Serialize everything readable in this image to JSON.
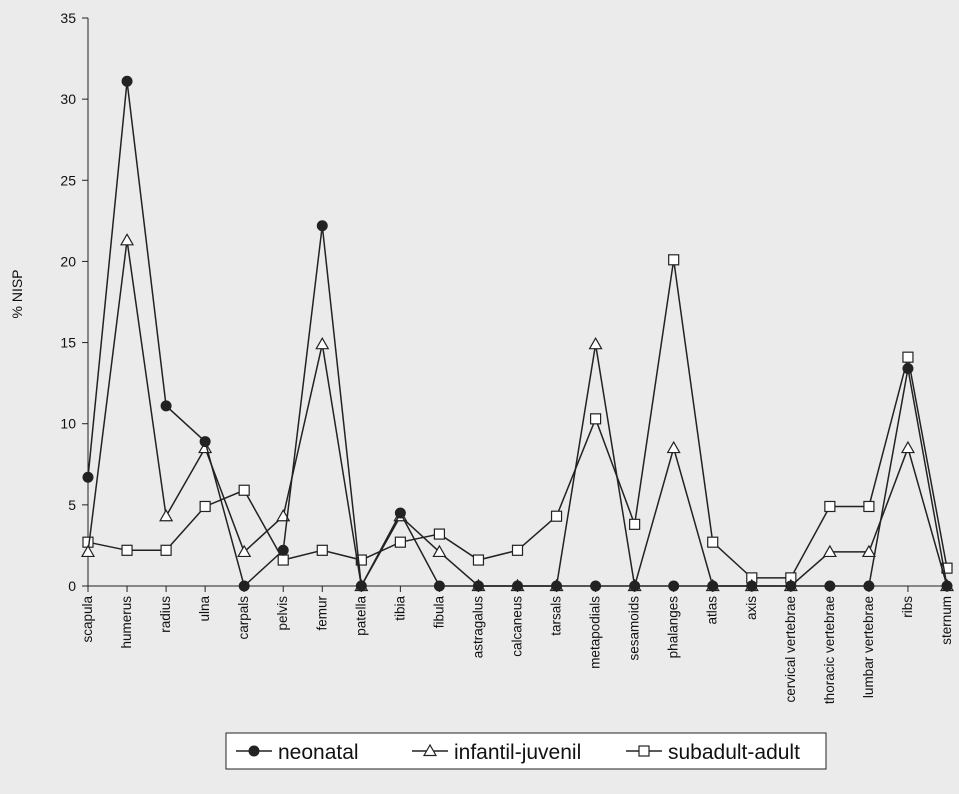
{
  "chart_data": {
    "type": "line",
    "ylabel": "% NISP",
    "xlabel": "",
    "ylim": [
      0,
      35
    ],
    "yticks": [
      0,
      5,
      10,
      15,
      20,
      25,
      30,
      35
    ],
    "grid": false,
    "legend_position": "bottom",
    "categories": [
      "scapula",
      "humerus",
      "radius",
      "ulna",
      "carpals",
      "pelvis",
      "femur",
      "patella",
      "tibia",
      "fibula",
      "astragalus",
      "calcaneus",
      "tarsals",
      "metapodials",
      "sesamoids",
      "phalanges",
      "atlas",
      "axis",
      "cervical vertebrae",
      "thoracic vertebrae",
      "lumbar vertebrae",
      "ribs",
      "sternum"
    ],
    "series": [
      {
        "name": "neonatal",
        "marker": "filled-circle",
        "color": "#222222",
        "values": [
          6.7,
          31.1,
          11.1,
          8.9,
          0,
          2.2,
          22.2,
          0,
          4.5,
          0,
          0,
          0,
          0,
          0,
          0,
          0,
          0,
          0,
          0,
          0,
          0,
          13.4,
          0
        ]
      },
      {
        "name": "infantil-juvenil",
        "marker": "open-triangle",
        "color": "#222222",
        "values": [
          2.1,
          21.3,
          4.3,
          8.5,
          2.1,
          4.3,
          14.9,
          0,
          4.3,
          2.1,
          0,
          0,
          0,
          14.9,
          0,
          8.5,
          0,
          0,
          0,
          2.1,
          2.1,
          8.5,
          0
        ]
      },
      {
        "name": "subadult-adult",
        "marker": "open-square",
        "color": "#222222",
        "values": [
          2.7,
          2.2,
          2.2,
          4.9,
          5.9,
          1.6,
          2.2,
          1.6,
          2.7,
          3.2,
          1.6,
          2.2,
          4.3,
          10.3,
          3.8,
          20.1,
          2.7,
          0.5,
          0.5,
          4.9,
          4.9,
          14.1,
          1.1
        ]
      }
    ]
  }
}
